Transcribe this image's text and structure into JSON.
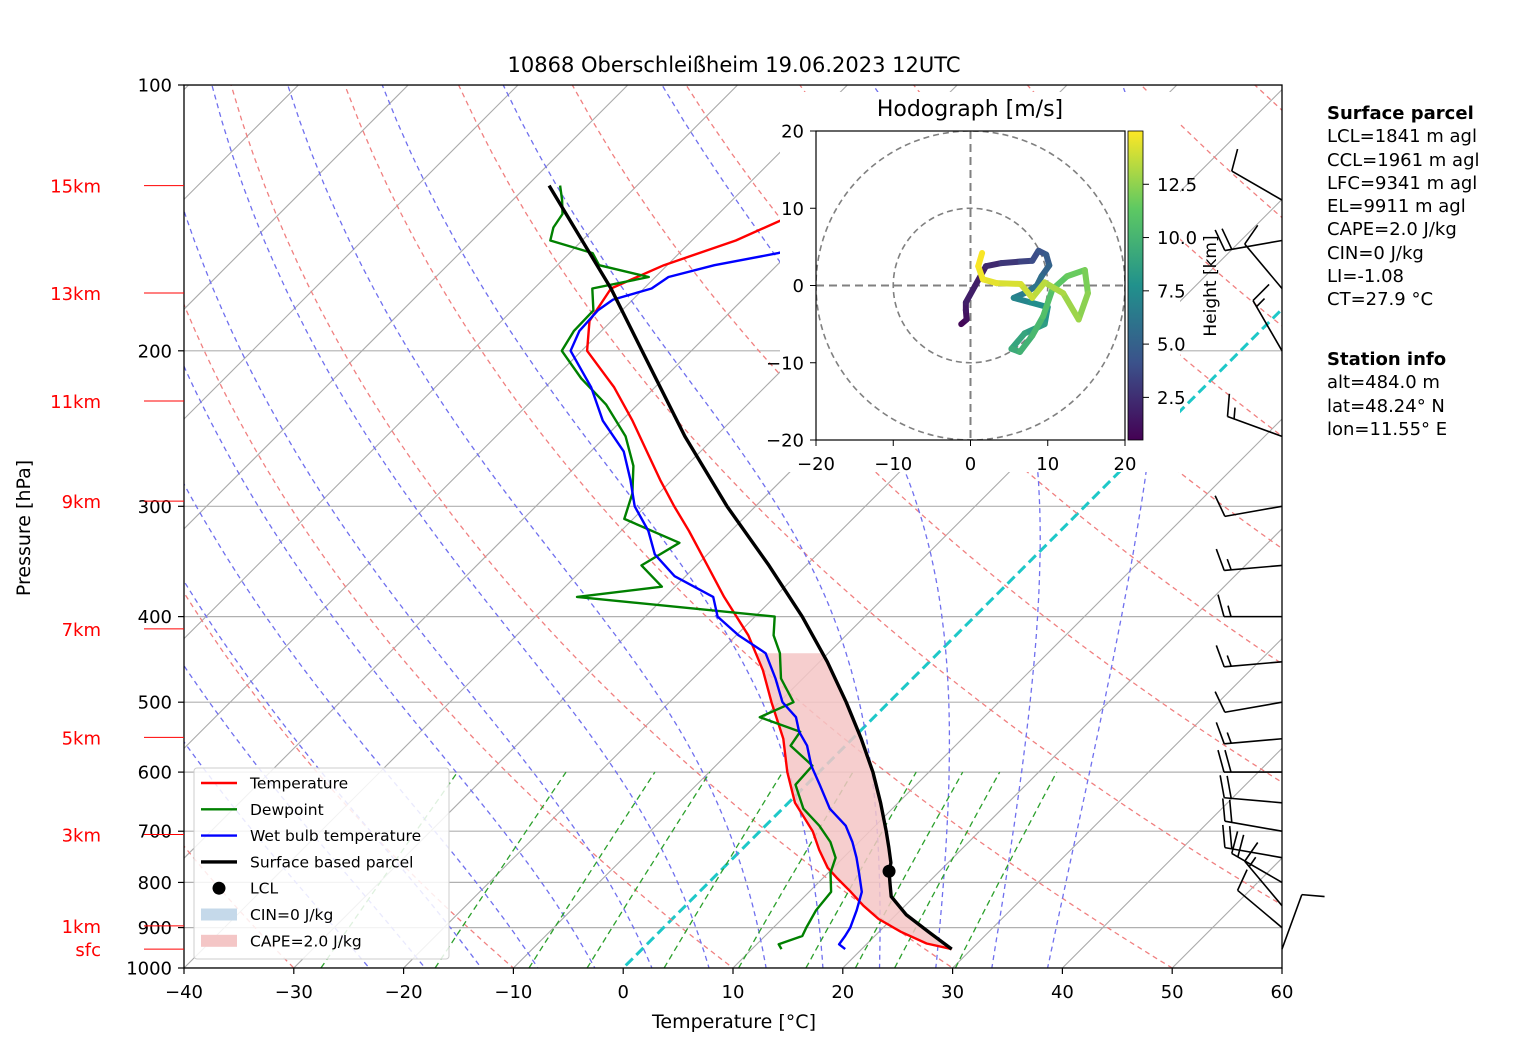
{
  "title": "10868 Oberschleißheim 19.06.2023 12UTC",
  "colors": {
    "temperature": "#ff0000",
    "dewpoint": "#008000",
    "wetbulb": "#0000ff",
    "parcel": "#000000",
    "dry_adiabat": "#f08080",
    "moist_adiabat": "#7070ee",
    "mixing_ratio": "#2ca02c",
    "isotherm": "#a9a9a9",
    "zero_isotherm": "#1ec8c8",
    "cape_fill": "#f4c6c6",
    "cin_fill": "#c5d9ea",
    "height_labels": "#ff0000"
  },
  "chart_data": [
    {
      "type": "line",
      "name": "skew-t",
      "title": "10868 Oberschleißheim 19.06.2023 12UTC",
      "xlabel": "Temperature [°C]",
      "ylabel": "Pressure [hPa]",
      "xlim": [
        -40,
        60
      ],
      "ylim": [
        1000,
        100
      ],
      "y_scale": "log",
      "x_ticks": [
        "−40",
        "−30",
        "−20",
        "−10",
        "0",
        "10",
        "20",
        "30",
        "40",
        "50",
        "60"
      ],
      "y_ticks": [
        "100",
        "200",
        "300",
        "400",
        "500",
        "600",
        "700",
        "800",
        "900",
        "1000"
      ],
      "skew_degrees": 45,
      "grid": true,
      "height_labels": [
        {
          "label": "15km",
          "p": 130
        },
        {
          "label": "13km",
          "p": 172
        },
        {
          "label": "11km",
          "p": 228
        },
        {
          "label": "9km",
          "p": 296
        },
        {
          "label": "7km",
          "p": 413
        },
        {
          "label": "5km",
          "p": 548
        },
        {
          "label": "3km",
          "p": 706
        },
        {
          "label": "1km",
          "p": 896
        },
        {
          "label": "sfc",
          "p": 952
        }
      ],
      "series": [
        {
          "name": "Temperature",
          "p": [
            952,
            938,
            910,
            880,
            850,
            820,
            790,
            770,
            735,
            700,
            650,
            600,
            550,
            500,
            460,
            420,
            380,
            350,
            320,
            300,
            280,
            260,
            240,
            220,
            200,
            185,
            170,
            160,
            150,
            140,
            132,
            128
          ],
          "t": [
            28.2,
            25.4,
            22.0,
            18.8,
            16.2,
            13.8,
            11.2,
            9.5,
            7.1,
            4.8,
            0.6,
            -2.9,
            -6.3,
            -10.7,
            -14.4,
            -18.9,
            -24.6,
            -29.0,
            -33.8,
            -37.4,
            -41.1,
            -44.9,
            -49.0,
            -53.7,
            -59.5,
            -62.0,
            -63.0,
            -60.3,
            -56.0,
            -53.0,
            -51.0,
            -50.0
          ]
        },
        {
          "name": "Dewpoint",
          "p": [
            952,
            940,
            920,
            900,
            860,
            820,
            780,
            750,
            720,
            690,
            660,
            620,
            590,
            560,
            540,
            520,
            500,
            470,
            440,
            420,
            400,
            380,
            370,
            350,
            330,
            310,
            290,
            270,
            250,
            230,
            215,
            200,
            190,
            180,
            170,
            165,
            160,
            155,
            150,
            145,
            140,
            135,
            130
          ],
          "t": [
            12.7,
            12.0,
            13.4,
            13.0,
            12.3,
            12.0,
            10.2,
            9.3,
            7.4,
            4.9,
            1.9,
            -1.0,
            -1.2,
            -5.0,
            -5.4,
            -10.4,
            -8.7,
            -12.0,
            -14.4,
            -16.6,
            -18.2,
            -38.0,
            -31.2,
            -35.0,
            -33.6,
            -40.8,
            -42.4,
            -44.8,
            -48.2,
            -52.9,
            -57.5,
            -61.8,
            -62.5,
            -62.6,
            -64.7,
            -60.6,
            -66.2,
            -67.9,
            -72.9,
            -73.8,
            -74.2,
            -75.5,
            -77.0
          ]
        },
        {
          "name": "Wet bulb temperature",
          "p": [
            952,
            940,
            920,
            900,
            860,
            820,
            780,
            750,
            720,
            690,
            660,
            620,
            590,
            560,
            540,
            520,
            500,
            470,
            440,
            420,
            400,
            380,
            360,
            340,
            320,
            300,
            280,
            260,
            240,
            220,
            200,
            190,
            180,
            175,
            170,
            165,
            160,
            155,
            150,
            145,
            140,
            135,
            130,
            127
          ],
          "t": [
            18.5,
            17.5,
            17.3,
            17.0,
            16.0,
            14.8,
            12.8,
            11.2,
            9.4,
            7.3,
            4.3,
            1.2,
            -1.3,
            -3.5,
            -5.5,
            -7.1,
            -9.7,
            -12.5,
            -15.7,
            -19.8,
            -23.4,
            -25.6,
            -31.0,
            -34.8,
            -37.5,
            -41.0,
            -43.8,
            -47.0,
            -51.7,
            -55.8,
            -61.0,
            -62.0,
            -62.2,
            -61.8,
            -59.3,
            -58.8,
            -55.7,
            -51.0,
            -47.4,
            -45.3,
            -43.9,
            -42.4,
            -41.4,
            -40.6
          ]
        },
        {
          "name": "Surface based parcel",
          "p": [
            952,
            910,
            870,
            830,
            800,
            777,
            760,
            730,
            700,
            650,
            600,
            550,
            500,
            450,
            400,
            350,
            300,
            250,
            200,
            170,
            150,
            130
          ],
          "t": [
            28.2,
            24.5,
            20.9,
            17.9,
            16.5,
            15.4,
            14.8,
            13.2,
            11.5,
            8.4,
            4.9,
            0.8,
            -3.9,
            -9.3,
            -15.7,
            -23.4,
            -32.6,
            -42.8,
            -54.5,
            -63.0,
            -70.0,
            -78.0
          ]
        }
      ],
      "lcl": {
        "p": 777,
        "t": 15.4
      },
      "legend": {
        "position": "lower-left",
        "entries": [
          {
            "label": "Temperature",
            "style": "line",
            "color": "#ff0000"
          },
          {
            "label": "Dewpoint",
            "style": "line",
            "color": "#008000"
          },
          {
            "label": "Wet bulb temperature",
            "style": "line",
            "color": "#0000ff"
          },
          {
            "label": "Surface based parcel",
            "style": "line",
            "color": "#000000"
          },
          {
            "label": "LCL",
            "style": "dot",
            "color": "#000000"
          },
          {
            "label": "CIN=0 J/kg",
            "style": "patch",
            "color": "#c5d9ea"
          },
          {
            "label": "CAPE=2.0 J/kg",
            "style": "patch",
            "color": "#f4c6c6"
          }
        ]
      },
      "wind_barbs": [
        {
          "p": 952,
          "spd": 10,
          "dir": 20
        },
        {
          "p": 900,
          "spd": 10,
          "dir": 310
        },
        {
          "p": 850,
          "spd": 15,
          "dir": 320
        },
        {
          "p": 800,
          "spd": 20,
          "dir": 300
        },
        {
          "p": 750,
          "spd": 20,
          "dir": 280
        },
        {
          "p": 700,
          "spd": 20,
          "dir": 280
        },
        {
          "p": 650,
          "spd": 20,
          "dir": 275
        },
        {
          "p": 600,
          "spd": 20,
          "dir": 270
        },
        {
          "p": 550,
          "spd": 15,
          "dir": 265
        },
        {
          "p": 500,
          "spd": 10,
          "dir": 260
        },
        {
          "p": 450,
          "spd": 15,
          "dir": 265
        },
        {
          "p": 400,
          "spd": 15,
          "dir": 270
        },
        {
          "p": 350,
          "spd": 15,
          "dir": 265
        },
        {
          "p": 300,
          "spd": 10,
          "dir": 260
        },
        {
          "p": 250,
          "spd": 15,
          "dir": 290
        },
        {
          "p": 200,
          "spd": 15,
          "dir": 330
        },
        {
          "p": 170,
          "spd": 10,
          "dir": 320
        },
        {
          "p": 150,
          "spd": 20,
          "dir": 260
        },
        {
          "p": 135,
          "spd": 10,
          "dir": 300
        }
      ]
    },
    {
      "type": "line",
      "name": "hodograph",
      "title": "Hodograph [m/s]",
      "xlim": [
        -20,
        20
      ],
      "ylim": [
        -20,
        20
      ],
      "x_ticks": [
        "−20",
        "−10",
        "0",
        "10",
        "20"
      ],
      "y_ticks": [
        "20",
        "10",
        "0",
        "−10",
        "−20"
      ],
      "rings": [
        10,
        20
      ],
      "colorbar": {
        "label": "Height [km]",
        "ticks": [
          "2.5",
          "5.0",
          "7.5",
          "10.0",
          "12.5"
        ],
        "range": [
          0.5,
          15
        ]
      },
      "points": [
        {
          "u": -1.2,
          "v": -5.0,
          "h": 0.5
        },
        {
          "u": -0.5,
          "v": -4.4,
          "h": 1.0
        },
        {
          "u": -0.6,
          "v": -3.2,
          "h": 1.4
        },
        {
          "u": -0.6,
          "v": -2.2,
          "h": 1.7
        },
        {
          "u": 2.0,
          "v": 2.5,
          "h": 2.0
        },
        {
          "u": 4.0,
          "v": 2.9,
          "h": 2.6
        },
        {
          "u": 6.5,
          "v": 3.1,
          "h": 3.2
        },
        {
          "u": 8.0,
          "v": 3.2,
          "h": 3.7
        },
        {
          "u": 8.8,
          "v": 4.5,
          "h": 4.1
        },
        {
          "u": 9.8,
          "v": 4.0,
          "h": 4.5
        },
        {
          "u": 10.2,
          "v": 2.6,
          "h": 4.9
        },
        {
          "u": 9.2,
          "v": 1.2,
          "h": 5.4
        },
        {
          "u": 8.6,
          "v": 0.0,
          "h": 5.9
        },
        {
          "u": 7.2,
          "v": -0.9,
          "h": 6.3
        },
        {
          "u": 5.6,
          "v": -1.6,
          "h": 6.8
        },
        {
          "u": 7.8,
          "v": -2.2,
          "h": 7.3
        },
        {
          "u": 10.0,
          "v": -2.8,
          "h": 7.8
        },
        {
          "u": 9.6,
          "v": -5.0,
          "h": 8.3
        },
        {
          "u": 7.0,
          "v": -6.2,
          "h": 8.8
        },
        {
          "u": 5.3,
          "v": -8.2,
          "h": 9.2
        },
        {
          "u": 6.4,
          "v": -8.6,
          "h": 9.6
        },
        {
          "u": 8.0,
          "v": -6.5,
          "h": 10.0
        },
        {
          "u": 9.4,
          "v": -4.0,
          "h": 10.5
        },
        {
          "u": 10.6,
          "v": -0.5,
          "h": 11.0
        },
        {
          "u": 12.5,
          "v": 1.2,
          "h": 11.4
        },
        {
          "u": 14.8,
          "v": 2.0,
          "h": 11.8
        },
        {
          "u": 15.2,
          "v": -1.0,
          "h": 12.2
        },
        {
          "u": 14.0,
          "v": -4.4,
          "h": 12.6
        },
        {
          "u": 12.0,
          "v": -1.0,
          "h": 13.0
        },
        {
          "u": 9.6,
          "v": 0.4,
          "h": 13.3
        },
        {
          "u": 8.0,
          "v": -1.6,
          "h": 13.7
        },
        {
          "u": 6.5,
          "v": 0.2,
          "h": 14.0
        },
        {
          "u": 3.4,
          "v": 0.3,
          "h": 14.3
        },
        {
          "u": 1.6,
          "v": 0.8,
          "h": 14.6
        },
        {
          "u": 1.0,
          "v": 2.5,
          "h": 14.8
        },
        {
          "u": 1.5,
          "v": 4.2,
          "h": 15.0
        }
      ]
    }
  ],
  "surface_parcel": {
    "header": "Surface parcel",
    "lines": [
      "LCL=1841 m agl",
      "CCL=1961 m agl",
      "LFC=9341 m agl",
      "EL=9911 m agl",
      "CAPE=2.0 J/kg",
      "CIN=0 J/kg",
      "LI=-1.08",
      "CT=27.9 °C"
    ]
  },
  "station_info": {
    "header": "Station info",
    "lines": [
      "alt=484.0 m",
      "lat=48.24° N",
      "lon=11.55° E"
    ]
  }
}
